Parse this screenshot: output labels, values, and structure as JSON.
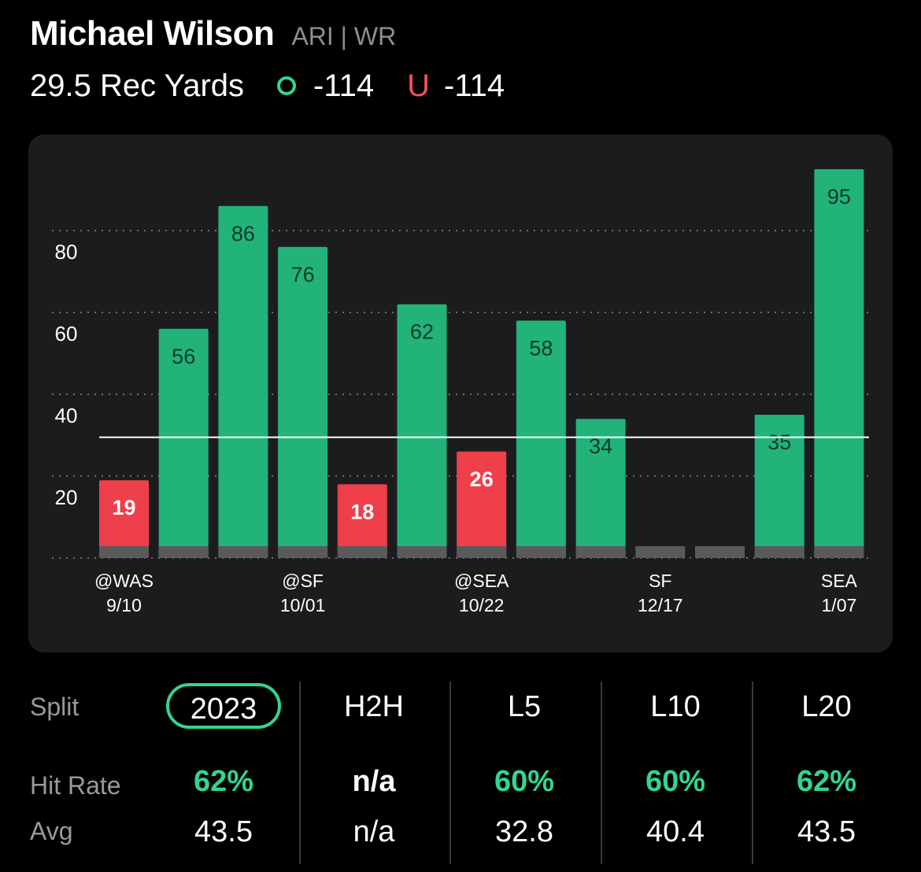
{
  "header": {
    "player_name": "Michael Wilson",
    "player_meta": "ARI | WR",
    "prop_line": "29.5 Rec Yards",
    "over_symbol": "circle-icon",
    "over_odds": "-114",
    "under_symbol": "U",
    "under_odds": "-114"
  },
  "colors": {
    "over": "#33d48f",
    "under": "#f5505e",
    "bar_green": "#22b37a",
    "bar_red": "#ef3f4a",
    "bar_base": "#5a5a5a",
    "card": "#1c1c1e"
  },
  "chart_data": {
    "type": "bar",
    "line_value": 29.5,
    "ylim": [
      0,
      100
    ],
    "y_ticks": [
      20,
      40,
      60,
      80
    ],
    "grid": "dotted horizontal",
    "bars": [
      {
        "value": 19,
        "label": "19"
      },
      {
        "value": 56,
        "label": "56"
      },
      {
        "value": 86,
        "label": "86"
      },
      {
        "value": 76,
        "label": "76"
      },
      {
        "value": 18,
        "label": "18"
      },
      {
        "value": 62,
        "label": "62"
      },
      {
        "value": 26,
        "label": "26"
      },
      {
        "value": 58,
        "label": "58"
      },
      {
        "value": 34,
        "label": "34"
      },
      {
        "value": 0,
        "label": ""
      },
      {
        "value": 0,
        "label": ""
      },
      {
        "value": 35,
        "label": "35"
      },
      {
        "value": 95,
        "label": "95"
      }
    ],
    "x_labels": [
      {
        "bar_index": 0,
        "opponent": "@WAS",
        "date": "9/10"
      },
      {
        "bar_index": 3,
        "opponent": "@SF",
        "date": "10/01"
      },
      {
        "bar_index": 6,
        "opponent": "@SEA",
        "date": "10/22"
      },
      {
        "bar_index": 9,
        "opponent": "SF",
        "date": "12/17"
      },
      {
        "bar_index": 12,
        "opponent": "SEA",
        "date": "1/07"
      }
    ]
  },
  "stats": {
    "split_label": "Split",
    "hit_rate_label": "Hit Rate",
    "avg_label": "Avg",
    "columns": [
      {
        "split": "2023",
        "hit_rate": "62%",
        "avg": "43.5",
        "selected": true
      },
      {
        "split": "H2H",
        "hit_rate": "n/a",
        "avg": "n/a",
        "selected": false
      },
      {
        "split": "L5",
        "hit_rate": "60%",
        "avg": "32.8",
        "selected": false
      },
      {
        "split": "L10",
        "hit_rate": "60%",
        "avg": "40.4",
        "selected": false
      },
      {
        "split": "L20",
        "hit_rate": "62%",
        "avg": "43.5",
        "selected": false
      }
    ]
  }
}
